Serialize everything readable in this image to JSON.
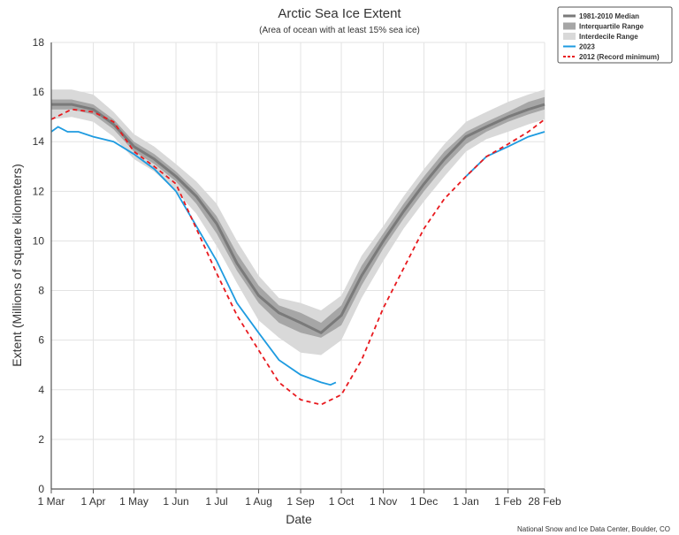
{
  "chart_data": {
    "type": "line",
    "title": "Arctic Sea Ice Extent",
    "subtitle": "(Area of ocean with at least 15% sea ice)",
    "xlabel": "Date",
    "ylabel": "Extent (Millions of square kilometers)",
    "credit": "National Snow and Ice Data Center, Boulder, CO",
    "ylim": [
      0,
      18
    ],
    "xlim": [
      0,
      364
    ],
    "y_ticks": [
      0,
      2,
      4,
      6,
      8,
      10,
      12,
      14,
      16,
      18
    ],
    "x_ticks": [
      {
        "day": 0,
        "label": "1 Mar"
      },
      {
        "day": 31,
        "label": "1 Apr"
      },
      {
        "day": 61,
        "label": "1 May"
      },
      {
        "day": 92,
        "label": "1 Jun"
      },
      {
        "day": 122,
        "label": "1 Jul"
      },
      {
        "day": 153,
        "label": "1 Aug"
      },
      {
        "day": 184,
        "label": "1 Sep"
      },
      {
        "day": 214,
        "label": "1 Oct"
      },
      {
        "day": 245,
        "label": "1 Nov"
      },
      {
        "day": 275,
        "label": "1 Dec"
      },
      {
        "day": 306,
        "label": "1 Jan"
      },
      {
        "day": 337,
        "label": "1 Feb"
      },
      {
        "day": 364,
        "label": "28 Feb"
      }
    ],
    "grid": true,
    "legend_position": "top-right",
    "legend": [
      {
        "label": "1981-2010 Median",
        "style": "median"
      },
      {
        "label": "Interquartile Range",
        "style": "iqr"
      },
      {
        "label": "Interdecile Range",
        "style": "idr"
      },
      {
        "label": "2023",
        "style": "y2023"
      },
      {
        "label": "2012 (Record minimum)",
        "style": "y2012"
      }
    ],
    "colors": {
      "median": "#7a7a7a",
      "iqr": "#a6a6a6",
      "idr": "#d9d9d9",
      "y2023": "#1e9be0",
      "y2012": "#e8191e",
      "grid": "#e3e3e3",
      "axis": "#555555"
    },
    "x_days": [
      0,
      15,
      31,
      46,
      61,
      76,
      92,
      107,
      122,
      137,
      153,
      168,
      184,
      199,
      214,
      229,
      245,
      260,
      275,
      290,
      306,
      321,
      337,
      352,
      364
    ],
    "series": [
      {
        "name": "1981-2010 Median",
        "key": "median",
        "values": [
          15.5,
          15.5,
          15.3,
          14.7,
          13.8,
          13.3,
          12.6,
          11.8,
          10.7,
          9.1,
          7.8,
          7.1,
          6.7,
          6.3,
          7.0,
          8.6,
          10.0,
          11.2,
          12.3,
          13.3,
          14.2,
          14.6,
          15.0,
          15.3,
          15.5
        ]
      },
      {
        "name": "Interquartile Range",
        "key": "iqr",
        "lower": [
          15.3,
          15.3,
          15.1,
          14.5,
          13.6,
          13.1,
          12.4,
          11.5,
          10.3,
          8.8,
          7.5,
          6.7,
          6.3,
          6.1,
          6.6,
          8.2,
          9.7,
          10.9,
          12.0,
          13.0,
          13.9,
          14.4,
          14.8,
          15.1,
          15.3
        ],
        "upper": [
          15.7,
          15.7,
          15.5,
          14.9,
          14.0,
          13.5,
          12.8,
          12.0,
          11.0,
          9.5,
          8.2,
          7.4,
          7.1,
          6.7,
          7.4,
          9.0,
          10.3,
          11.5,
          12.6,
          13.6,
          14.4,
          14.8,
          15.2,
          15.6,
          15.8
        ]
      },
      {
        "name": "Interdecile Range",
        "key": "idr",
        "lower": [
          14.9,
          15.0,
          14.8,
          14.2,
          13.3,
          12.8,
          12.0,
          11.1,
          9.8,
          8.3,
          6.8,
          6.1,
          5.5,
          5.4,
          6.0,
          7.7,
          9.2,
          10.5,
          11.6,
          12.6,
          13.6,
          14.1,
          14.4,
          14.7,
          14.9
        ],
        "upper": [
          16.1,
          16.1,
          15.9,
          15.2,
          14.3,
          13.8,
          13.1,
          12.4,
          11.5,
          10.0,
          8.6,
          7.7,
          7.5,
          7.2,
          7.8,
          9.4,
          10.6,
          11.8,
          12.9,
          13.9,
          14.8,
          15.2,
          15.6,
          15.9,
          16.1
        ]
      },
      {
        "name": "2023",
        "key": "y2023",
        "x": [
          0,
          5,
          12,
          20,
          31,
          46,
          61,
          76,
          92,
          107,
          122,
          137,
          153,
          168,
          184,
          199,
          206,
          210
        ],
        "values": [
          14.4,
          14.6,
          14.4,
          14.4,
          14.2,
          14.0,
          13.5,
          12.9,
          12.0,
          10.6,
          9.2,
          7.5,
          6.3,
          5.2,
          4.6,
          4.3,
          4.2,
          4.3
        ]
      },
      {
        "name": "2023 (Jan-Feb)",
        "key": "y2023",
        "x": [
          306,
          321,
          337,
          352,
          364
        ],
        "values": [
          12.6,
          13.4,
          13.8,
          14.2,
          14.4
        ]
      },
      {
        "name": "2012 (Record minimum)",
        "key": "y2012",
        "values": [
          14.9,
          15.3,
          15.2,
          14.8,
          13.6,
          13.0,
          12.3,
          10.5,
          8.7,
          7.0,
          5.6,
          4.3,
          3.6,
          3.4,
          3.8,
          5.2,
          7.3,
          8.9,
          10.5,
          11.7,
          12.6,
          13.4,
          13.9,
          14.4,
          14.9
        ]
      }
    ]
  }
}
